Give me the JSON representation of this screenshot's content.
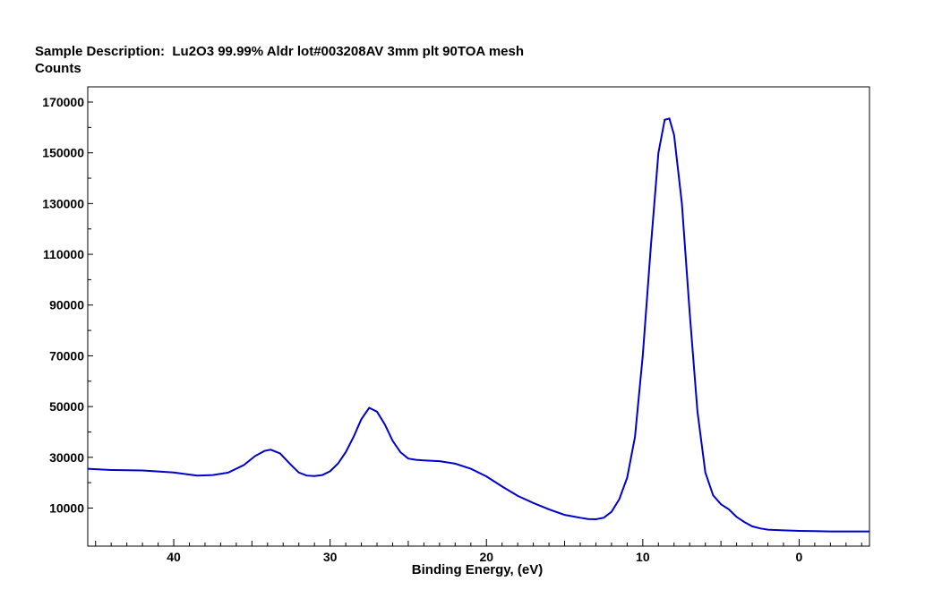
{
  "chart_data": {
    "type": "line",
    "title": "Sample Description:  Lu2O3 99.99% Aldr lot#003208AV 3mm plt 90TOA mesh",
    "ylabel": "Counts",
    "xlabel": "Binding Energy, (eV)",
    "x_reversed": true,
    "xlim": [
      45.5,
      -4.5
    ],
    "ylim": [
      -5000,
      176000
    ],
    "x_ticks": [
      40,
      30,
      20,
      10,
      0
    ],
    "x_tick_labels": [
      "40",
      "30",
      "20",
      "10",
      "0"
    ],
    "y_ticks": [
      10000,
      30000,
      50000,
      70000,
      90000,
      110000,
      130000,
      150000,
      170000
    ],
    "y_tick_labels": [
      "10000",
      "30000",
      "50000",
      "70000",
      "90000",
      "110000",
      "130000",
      "150000",
      "170000"
    ],
    "grid": false,
    "line_color": "#0000cc",
    "series": [
      {
        "x": [
          45.5,
          44,
          42,
          40,
          38.5,
          37.5,
          36.5,
          35.5,
          34.8,
          34.2,
          33.8,
          33.2,
          32.5,
          32,
          31.5,
          31,
          30.5,
          30,
          29.5,
          29,
          28.5,
          28,
          27.5,
          27,
          26.5,
          26,
          25.5,
          25,
          24.5,
          24,
          23,
          22,
          21,
          20,
          19,
          18,
          17,
          16,
          15,
          14,
          13.5,
          13,
          12.5,
          12,
          11.5,
          11,
          10.5,
          10,
          9.5,
          9,
          8.6,
          8.3,
          8,
          7.5,
          7,
          6.5,
          6,
          5.5,
          5,
          4.5,
          4,
          3.5,
          3,
          2.5,
          2,
          1,
          0,
          -1,
          -2,
          -4.5
        ],
        "y": [
          25500,
          25000,
          24800,
          24000,
          22800,
          23000,
          24000,
          27000,
          30500,
          32500,
          33000,
          31500,
          27000,
          24000,
          22800,
          22600,
          23000,
          24500,
          27500,
          32000,
          38000,
          45000,
          49500,
          48000,
          43000,
          36500,
          32000,
          29500,
          29000,
          28800,
          28500,
          27500,
          25500,
          22500,
          18500,
          14800,
          12000,
          9500,
          7300,
          6200,
          5700,
          5600,
          6200,
          8500,
          13500,
          22000,
          38000,
          70000,
          112000,
          150000,
          163000,
          163500,
          157000,
          130000,
          87000,
          48000,
          24000,
          15000,
          11500,
          9500,
          6500,
          4500,
          2800,
          2000,
          1500,
          1200,
          1000,
          900,
          800,
          800
        ]
      }
    ]
  }
}
